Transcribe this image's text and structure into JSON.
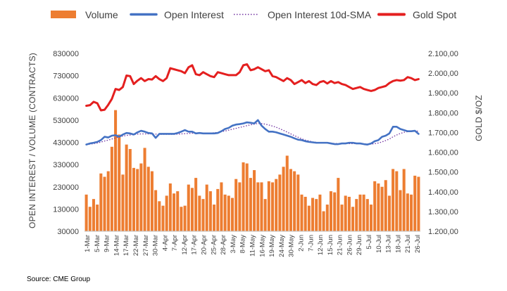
{
  "chart_data": {
    "type": "bar+line",
    "title": "",
    "source": "Source: CME Group",
    "legend": [
      "Volume",
      "Open Interest",
      "Open Interest 10d-SMA",
      "Gold Spot"
    ],
    "legend_position": "top",
    "colors": {
      "volume": "#ED7D31",
      "open_interest": "#4472C4",
      "sma": "#7030A0",
      "gold_spot": "#E41F1F"
    },
    "left_axis": {
      "label": "OPEN INTEREST / VOLUME (CONTRACTS)",
      "min": 30000,
      "max": 830000,
      "ticks": [
        "830000",
        "730000",
        "630000",
        "530000",
        "430000",
        "330000",
        "230000",
        "130000",
        "30000"
      ]
    },
    "right_axis": {
      "label": "GOLD $/OZ",
      "min": 1200,
      "max": 2100,
      "ticks": [
        "2.100,00",
        "2.000,00",
        "1.900,00",
        "1.800,00",
        "1.700,00",
        "1.600,00",
        "1.500,00",
        "1.400,00",
        "1.300,00",
        "1.200,00"
      ]
    },
    "x_ticks": [
      "1-Mar",
      "5-Mar",
      "9-Mar",
      "14-Mar",
      "17-Mar",
      "22-Mar",
      "27-Mar",
      "30-Mar",
      "4-Apr",
      "7-Apr",
      "12-Apr",
      "17-Apr",
      "20-Apr",
      "25-Apr",
      "28-Apr",
      "3-May",
      "8-May",
      "11-May",
      "16-May",
      "19-May",
      "24-May",
      "30-May",
      "2-Jun",
      "7-Jun",
      "12-Jun",
      "15-Jun",
      "21-Jun",
      "26-Jun",
      "29-Jun",
      "5-Jul",
      "10-Jul",
      "13-Jul",
      "18-Jul",
      "21-Jul",
      "26-Jul"
    ],
    "volume": [
      195000,
      140000,
      175000,
      150000,
      290000,
      275000,
      300000,
      410000,
      575000,
      465000,
      285000,
      420000,
      400000,
      315000,
      310000,
      335000,
      405000,
      320000,
      300000,
      215000,
      165000,
      145000,
      190000,
      245000,
      200000,
      210000,
      140000,
      145000,
      240000,
      225000,
      270000,
      190000,
      175000,
      240000,
      210000,
      150000,
      220000,
      250000,
      195000,
      190000,
      180000,
      265000,
      250000,
      340000,
      335000,
      270000,
      305000,
      250000,
      250000,
      175000,
      255000,
      250000,
      265000,
      285000,
      320000,
      370000,
      310000,
      300000,
      285000,
      195000,
      185000,
      145000,
      180000,
      175000,
      195000,
      120000,
      150000,
      210000,
      205000,
      270000,
      150000,
      190000,
      185000,
      140000,
      175000,
      195000,
      195000,
      175000,
      150000,
      255000,
      245000,
      230000,
      260000,
      190000,
      310000,
      300000,
      215000,
      310000,
      200000,
      195000,
      280000,
      275000
    ],
    "open_interest": [
      420000,
      425000,
      428000,
      432000,
      440000,
      455000,
      452000,
      460000,
      462000,
      455000,
      465000,
      472000,
      470000,
      465000,
      475000,
      482000,
      478000,
      472000,
      470000,
      450000,
      468000,
      468000,
      468000,
      468000,
      468000,
      472000,
      478000,
      485000,
      478000,
      478000,
      470000,
      472000,
      470000,
      470000,
      470000,
      470000,
      472000,
      480000,
      490000,
      495000,
      505000,
      510000,
      512000,
      515000,
      520000,
      518000,
      515000,
      530000,
      505000,
      490000,
      478000,
      478000,
      475000,
      470000,
      465000,
      460000,
      455000,
      448000,
      442000,
      440000,
      435000,
      432000,
      430000,
      428000,
      428000,
      428000,
      428000,
      425000,
      422000,
      422000,
      425000,
      425000,
      428000,
      428000,
      425000,
      425000,
      422000,
      420000,
      425000,
      435000,
      440000,
      455000,
      460000,
      470000,
      500000,
      500000,
      490000,
      485000,
      480000,
      480000,
      482000,
      468000
    ],
    "open_interest_sma": [
      420000,
      422000,
      424000,
      427000,
      431000,
      436000,
      440000,
      445000,
      450000,
      455000,
      458000,
      461000,
      463000,
      465000,
      467000,
      468000,
      468000,
      468000,
      468000,
      467000,
      466000,
      466000,
      466000,
      466000,
      466000,
      467000,
      468000,
      469000,
      470000,
      471000,
      471000,
      471000,
      471000,
      471000,
      472000,
      473000,
      475000,
      478000,
      481000,
      485000,
      489000,
      493000,
      497000,
      501000,
      505000,
      509000,
      512000,
      515000,
      514000,
      512000,
      508000,
      503000,
      498000,
      491000,
      484000,
      476000,
      468000,
      460000,
      453000,
      446000,
      440000,
      436000,
      432000,
      430000,
      429000,
      428000,
      427000,
      426000,
      425000,
      424000,
      424000,
      424000,
      424000,
      424000,
      424000,
      424000,
      423000,
      422000,
      422000,
      424000,
      427000,
      432000,
      438000,
      445000,
      455000,
      463000,
      470000,
      475000,
      478000,
      480000,
      481000,
      480000
    ],
    "gold_spot": [
      1835,
      1838,
      1855,
      1848,
      1812,
      1815,
      1840,
      1870,
      1920,
      1915,
      1930,
      1988,
      1985,
      1945,
      1962,
      1975,
      1960,
      1970,
      1968,
      1985,
      1970,
      1960,
      1975,
      2025,
      2020,
      2015,
      2010,
      2000,
      2030,
      2040,
      1995,
      1990,
      2005,
      1995,
      1985,
      1980,
      2005,
      2000,
      1995,
      1990,
      1990,
      1990,
      2005,
      2040,
      2045,
      2015,
      2020,
      2030,
      2020,
      2010,
      2015,
      1985,
      1980,
      1970,
      1960,
      1975,
      1965,
      1945,
      1955,
      1965,
      1950,
      1960,
      1945,
      1940,
      1955,
      1960,
      1948,
      1960,
      1950,
      1955,
      1945,
      1940,
      1930,
      1920,
      1925,
      1930,
      1920,
      1915,
      1910,
      1915,
      1925,
      1930,
      1935,
      1950,
      1960,
      1965,
      1962,
      1965,
      1980,
      1975,
      1965,
      1970
    ]
  }
}
